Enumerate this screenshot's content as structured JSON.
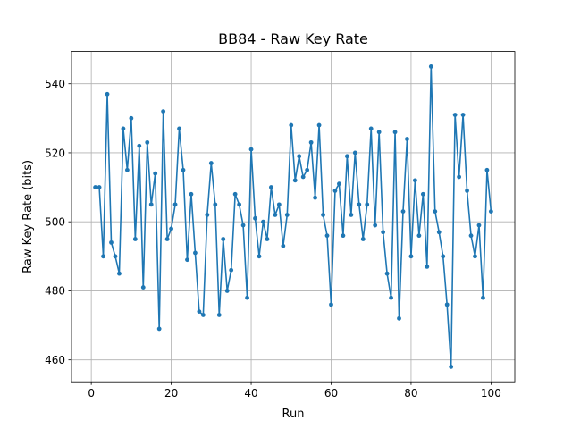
{
  "chart_data": {
    "type": "line",
    "title": "BB84 - Raw Key Rate",
    "xlabel": "Run",
    "ylabel": "Raw Key Rate (bits)",
    "xlim": [
      -4.95,
      105.95
    ],
    "ylim": [
      453.65,
      549.35
    ],
    "xticks": [
      0,
      20,
      40,
      60,
      80,
      100
    ],
    "yticks": [
      460,
      480,
      500,
      520,
      540
    ],
    "grid": true,
    "series": [
      {
        "color": "#1f77b4",
        "marker": "circle",
        "x": [
          1,
          2,
          3,
          4,
          5,
          6,
          7,
          8,
          9,
          10,
          11,
          12,
          13,
          14,
          15,
          16,
          17,
          18,
          19,
          20,
          21,
          22,
          23,
          24,
          25,
          26,
          27,
          28,
          29,
          30,
          31,
          32,
          33,
          34,
          35,
          36,
          37,
          38,
          39,
          40,
          41,
          42,
          43,
          44,
          45,
          46,
          47,
          48,
          49,
          50,
          51,
          52,
          53,
          54,
          55,
          56,
          57,
          58,
          59,
          60,
          61,
          62,
          63,
          64,
          65,
          66,
          67,
          68,
          69,
          70,
          71,
          72,
          73,
          74,
          75,
          76,
          77,
          78,
          79,
          80,
          81,
          82,
          83,
          84,
          85,
          86,
          87,
          88,
          89,
          90,
          91,
          92,
          93,
          94,
          95,
          96,
          97,
          98,
          99,
          100
        ],
        "values": [
          510,
          510,
          490,
          537,
          494,
          490,
          485,
          527,
          515,
          530,
          495,
          522,
          481,
          523,
          505,
          514,
          469,
          532,
          495,
          498,
          505,
          527,
          515,
          489,
          508,
          491,
          474,
          473,
          502,
          517,
          505,
          473,
          495,
          480,
          486,
          508,
          505,
          499,
          478,
          521,
          501,
          490,
          500,
          495,
          510,
          502,
          505,
          493,
          502,
          528,
          512,
          519,
          513,
          515,
          523,
          507,
          528,
          502,
          496,
          476,
          509,
          511,
          496,
          519,
          502,
          520,
          505,
          495,
          505,
          527,
          499,
          526,
          497,
          485,
          478,
          526,
          472,
          503,
          524,
          490,
          512,
          496,
          508,
          487,
          545,
          503,
          497,
          490,
          476,
          458,
          531,
          513,
          531,
          509,
          496,
          490,
          499,
          478,
          515,
          503
        ]
      }
    ]
  }
}
